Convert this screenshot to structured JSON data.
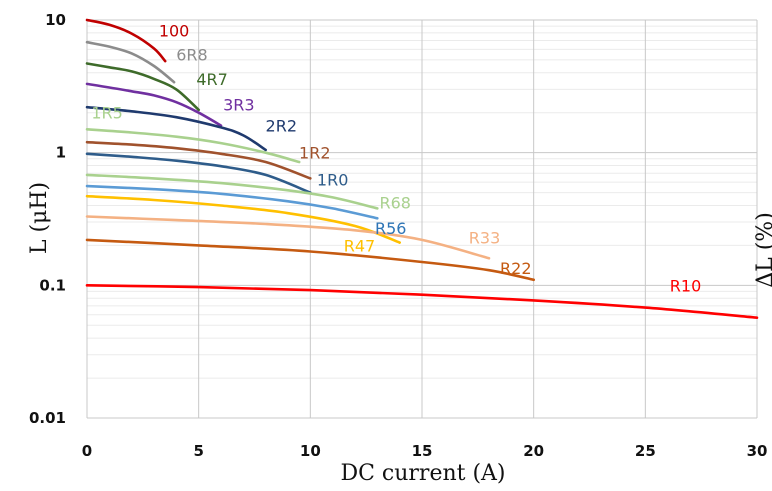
{
  "chart_data": {
    "type": "line",
    "title": "",
    "xlabel": "DC current (A)",
    "ylabel": "L (μH)",
    "right_axis_fragment": "ΔL (%)",
    "x_scale": "linear",
    "y_scale": "log",
    "xlim": [
      0,
      30
    ],
    "ylim": [
      0.01,
      10
    ],
    "x_ticks": [
      "0",
      "5",
      "10",
      "15",
      "20",
      "25",
      "30"
    ],
    "y_ticks": [
      "0.01",
      "0.1",
      "1",
      "10"
    ],
    "grid": true,
    "legend": "none (labels placed beside curves)",
    "series": [
      {
        "name": "100",
        "color": "#c00000",
        "x": [
          0,
          1,
          2,
          3,
          3.5
        ],
        "y": [
          10.0,
          9.2,
          7.9,
          6.1,
          4.9
        ]
      },
      {
        "name": "6R8",
        "color": "#8c8c8c",
        "x": [
          0,
          1,
          2,
          3,
          3.9
        ],
        "y": [
          6.8,
          6.3,
          5.6,
          4.5,
          3.4
        ]
      },
      {
        "name": "4R7",
        "color": "#3e6b2a",
        "x": [
          0,
          1,
          2,
          3,
          4,
          5
        ],
        "y": [
          4.7,
          4.4,
          4.1,
          3.6,
          3.0,
          2.1
        ]
      },
      {
        "name": "3R3",
        "color": "#7030a0",
        "x": [
          0,
          1,
          2,
          3,
          4,
          5,
          6
        ],
        "y": [
          3.3,
          3.1,
          2.9,
          2.7,
          2.4,
          2.0,
          1.6
        ]
      },
      {
        "name": "2R2",
        "color": "#1f3a6e",
        "x": [
          0,
          2,
          4,
          6,
          7,
          8
        ],
        "y": [
          2.2,
          2.05,
          1.85,
          1.55,
          1.35,
          1.05
        ]
      },
      {
        "name": "1R5",
        "color": "#a9d18e",
        "x": [
          0,
          2,
          4,
          6,
          8,
          9.5
        ],
        "y": [
          1.5,
          1.42,
          1.32,
          1.18,
          1.0,
          0.85
        ]
      },
      {
        "name": "1R2",
        "color": "#a0522d",
        "x": [
          0,
          2,
          4,
          6,
          8,
          10
        ],
        "y": [
          1.2,
          1.15,
          1.08,
          0.98,
          0.85,
          0.64
        ]
      },
      {
        "name": "1R0",
        "color": "#2e5c8a",
        "x": [
          0,
          2,
          4,
          6,
          8,
          10
        ],
        "y": [
          0.98,
          0.93,
          0.87,
          0.79,
          0.68,
          0.5
        ]
      },
      {
        "name": "R68",
        "color": "#a9d18e",
        "x": [
          0,
          3,
          6,
          9,
          11,
          13
        ],
        "y": [
          0.68,
          0.64,
          0.59,
          0.52,
          0.46,
          0.38
        ]
      },
      {
        "name": "R56",
        "color": "#5b9bd5",
        "x": [
          0,
          3,
          6,
          9,
          11,
          13
        ],
        "y": [
          0.56,
          0.53,
          0.49,
          0.43,
          0.38,
          0.32
        ]
      },
      {
        "name": "R47",
        "color": "#ffc000",
        "x": [
          0,
          3,
          6,
          9,
          12,
          14
        ],
        "y": [
          0.47,
          0.44,
          0.4,
          0.35,
          0.28,
          0.21
        ]
      },
      {
        "name": "R33",
        "color": "#f4b183",
        "x": [
          0,
          4,
          8,
          12,
          15,
          18
        ],
        "y": [
          0.33,
          0.31,
          0.29,
          0.26,
          0.22,
          0.16
        ]
      },
      {
        "name": "R22",
        "color": "#c55a11",
        "x": [
          0,
          5,
          10,
          15,
          18,
          20
        ],
        "y": [
          0.22,
          0.2,
          0.18,
          0.15,
          0.13,
          0.11
        ]
      },
      {
        "name": "R10",
        "color": "#ff0000",
        "x": [
          0,
          5,
          10,
          15,
          20,
          25,
          30
        ],
        "y": [
          0.1,
          0.097,
          0.092,
          0.085,
          0.077,
          0.068,
          0.057
        ]
      }
    ],
    "labels": [
      {
        "text": "100",
        "color": "#c00000",
        "x": 3.9,
        "y": 8.3
      },
      {
        "text": "6R8",
        "color": "#8c8c8c",
        "x": 4.7,
        "y": 5.5
      },
      {
        "text": "4R7",
        "color": "#3e6b2a",
        "x": 5.6,
        "y": 3.6
      },
      {
        "text": "3R3",
        "color": "#7030a0",
        "x": 6.8,
        "y": 2.3
      },
      {
        "text": "2R2",
        "color": "#1f3a6e",
        "x": 8.7,
        "y": 1.6
      },
      {
        "text": "1R5",
        "color": "#a9d18e",
        "x": 0.9,
        "y": 2.0
      },
      {
        "text": "1R2",
        "color": "#a0522d",
        "x": 10.2,
        "y": 1.0
      },
      {
        "text": "1R0",
        "color": "#2e5c8a",
        "x": 11.0,
        "y": 0.63
      },
      {
        "text": "R68",
        "color": "#a9d18e",
        "x": 13.8,
        "y": 0.42
      },
      {
        "text": "R56",
        "color": "#2e75b6",
        "x": 13.6,
        "y": 0.27
      },
      {
        "text": "R47",
        "color": "#ffc000",
        "x": 12.2,
        "y": 0.2
      },
      {
        "text": "R33",
        "color": "#f4b183",
        "x": 17.8,
        "y": 0.23
      },
      {
        "text": "R22",
        "color": "#c55a11",
        "x": 19.2,
        "y": 0.135
      },
      {
        "text": "R10",
        "color": "#ff0000",
        "x": 26.8,
        "y": 0.1
      }
    ]
  }
}
